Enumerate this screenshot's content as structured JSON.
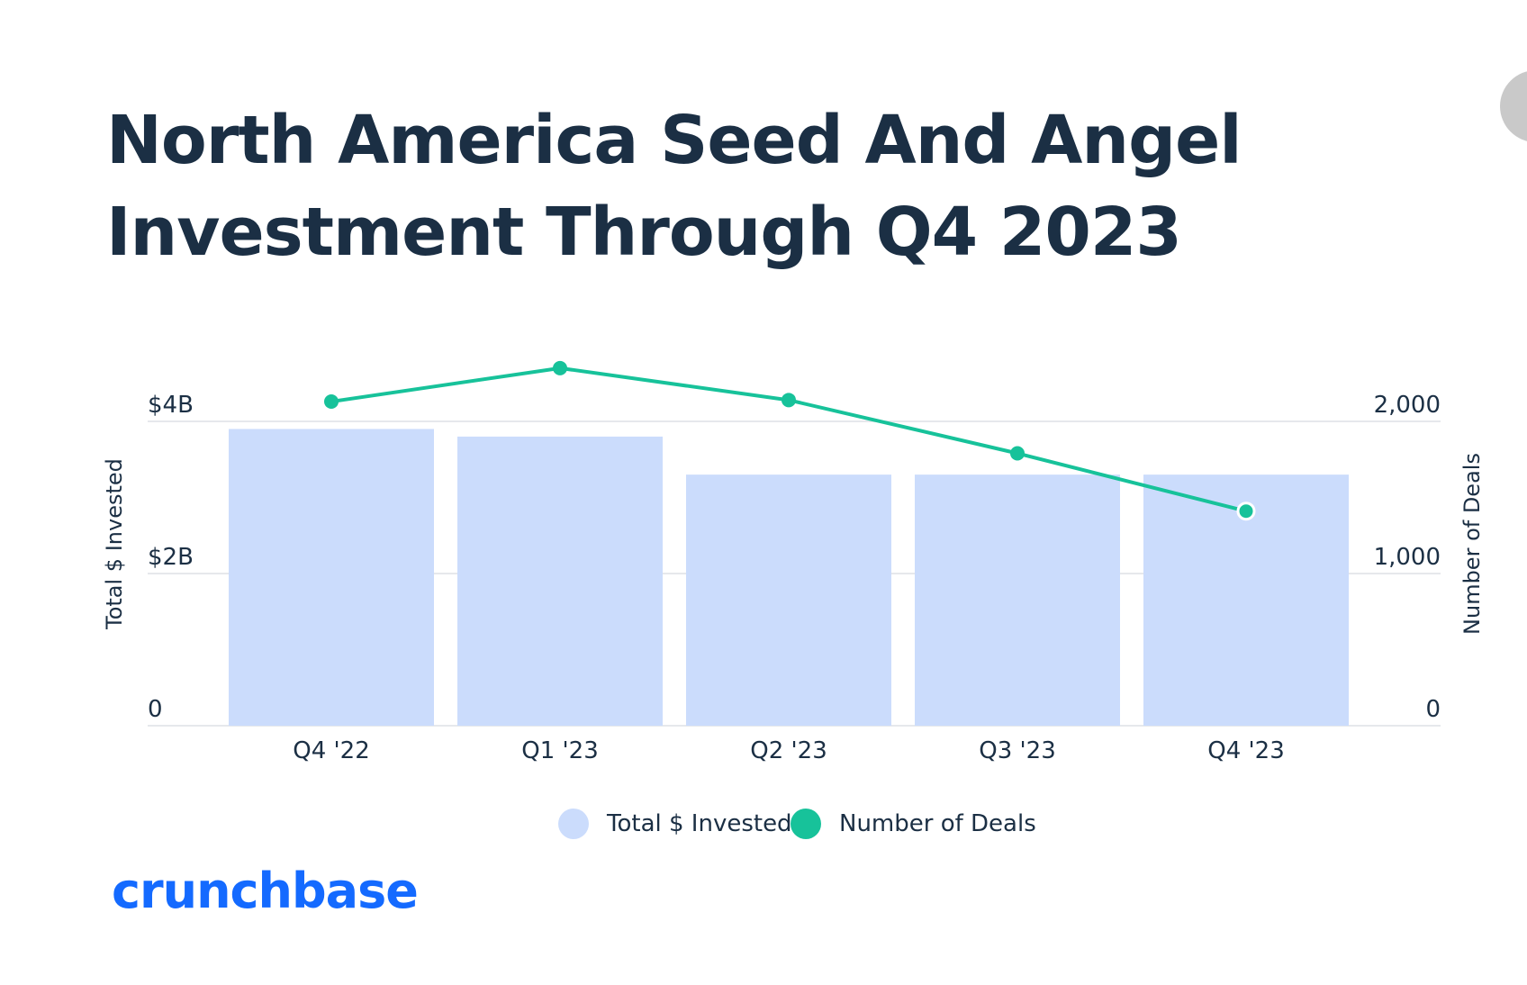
{
  "title": {
    "line1": "North America Seed And Angel",
    "line2": "Investment Through Q4 2023"
  },
  "brand": {
    "text": "crunchbase"
  },
  "colors": {
    "bar": "#cbdcfc",
    "line": "#17c29a",
    "text": "#1b2f44",
    "grid": "#e6e8ec",
    "brand": "#146aff"
  },
  "legend": {
    "bars_label": "Total $ Invested",
    "line_label": "Number of Deals"
  },
  "chart_data": {
    "type": "bar",
    "categories": [
      "Q4 '22",
      "Q1 '23",
      "Q2 '23",
      "Q3 '23",
      "Q4 '23"
    ],
    "series": [
      {
        "name": "Total $ Invested",
        "type": "bar",
        "axis": "left",
        "values": [
          3.9,
          3.8,
          3.3,
          3.3,
          3.3
        ]
      },
      {
        "name": "Number of Deals",
        "type": "line",
        "axis": "right",
        "values": [
          2130,
          2350,
          2140,
          1790,
          1410
        ]
      }
    ],
    "ylabel": "Total $ Invested",
    "y2label": "Number of Deals",
    "ylim": [
      0,
      4
    ],
    "y2lim": [
      0,
      2000
    ],
    "yticks": [
      {
        "value": 0,
        "label": "0"
      },
      {
        "value": 2,
        "label": "$2B"
      },
      {
        "value": 4,
        "label": "$4B"
      }
    ],
    "y2ticks": [
      {
        "value": 0,
        "label": "0"
      },
      {
        "value": 1000,
        "label": "1,000"
      },
      {
        "value": 2000,
        "label": "2,000"
      }
    ],
    "grid": true,
    "legend_position": "bottom"
  }
}
